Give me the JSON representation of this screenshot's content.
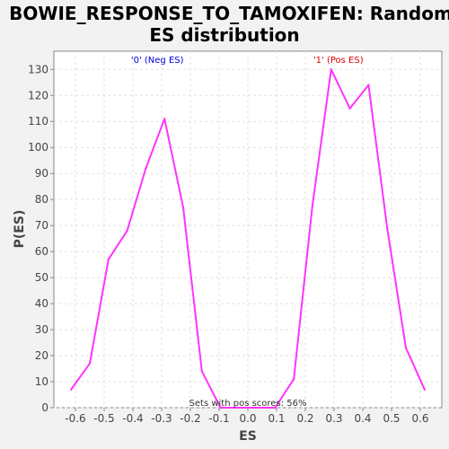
{
  "chart_data": {
    "type": "line",
    "title_line1": "BOWIE_RESPONSE_TO_TAMOXIFEN: Random",
    "title_line2": "ES distribution",
    "xlabel": "ES",
    "ylabel": "P(ES)",
    "xlim": [
      -0.675,
      0.675
    ],
    "ylim": [
      0,
      137
    ],
    "xticks": [
      "-0.6",
      "-0.5",
      "-0.4",
      "-0.3",
      "-0.2",
      "-0.1",
      "0.0",
      "0.1",
      "0.2",
      "0.3",
      "0.4",
      "0.5",
      "0.6"
    ],
    "xtick_values": [
      -0.6,
      -0.5,
      -0.4,
      -0.3,
      -0.2,
      -0.1,
      0.0,
      0.1,
      0.2,
      0.3,
      0.4,
      0.5,
      0.6
    ],
    "yticks": [
      "0",
      "10",
      "20",
      "30",
      "40",
      "50",
      "60",
      "70",
      "80",
      "90",
      "100",
      "110",
      "120",
      "130"
    ],
    "ytick_values": [
      0,
      10,
      20,
      30,
      40,
      50,
      60,
      70,
      80,
      90,
      100,
      110,
      120,
      130
    ],
    "grid": true,
    "series": [
      {
        "color": "#ff33ff",
        "x": [
          -0.615,
          -0.55,
          -0.485,
          -0.42,
          -0.355,
          -0.29,
          -0.225,
          -0.16,
          -0.095,
          -0.03,
          0.03,
          0.095,
          0.16,
          0.225,
          0.29,
          0.355,
          0.42,
          0.485,
          0.55,
          0.615
        ],
        "y": [
          7,
          17,
          57,
          68,
          92,
          111,
          77,
          14,
          0,
          0,
          0,
          0,
          11,
          78,
          130,
          115,
          124,
          69,
          23,
          7
        ]
      }
    ],
    "annotations": [
      {
        "text": "'0' (Neg ES)",
        "color": "#0000dd",
        "x": -0.315
      },
      {
        "text": "'1' (Pos ES)",
        "color": "#dd0000",
        "x": 0.315
      }
    ],
    "footnote": "Sets with pos scores: 56%"
  }
}
